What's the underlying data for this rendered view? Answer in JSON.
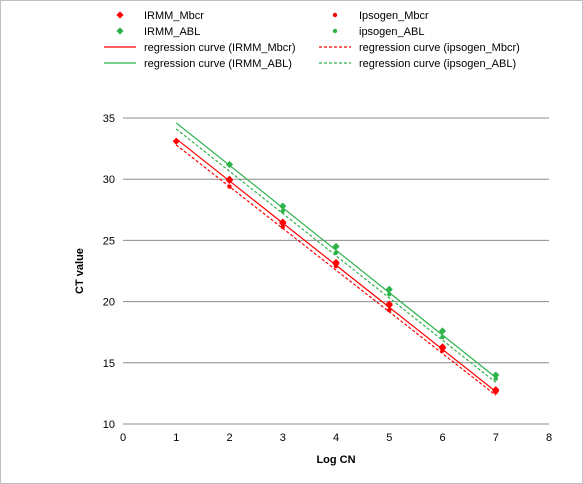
{
  "chart_data": {
    "type": "scatter",
    "xlabel": "Log CN",
    "ylabel": "CT value",
    "xlim": [
      0,
      8
    ],
    "ylim": [
      10,
      35
    ],
    "xticks": [
      0,
      1,
      2,
      3,
      4,
      5,
      6,
      7,
      8
    ],
    "yticks": [
      10,
      15,
      20,
      25,
      30,
      35
    ],
    "grid": "horizontal",
    "legend_position": "top",
    "series": [
      {
        "name": "IRMM_Mbcr",
        "marker": "diamond",
        "color": "#ff0000",
        "points": [
          [
            1,
            33.1
          ],
          [
            2,
            30.0
          ],
          [
            2,
            29.9
          ],
          [
            3,
            26.5
          ],
          [
            3,
            26.4
          ],
          [
            4,
            23.2
          ],
          [
            4,
            23.1
          ],
          [
            5,
            19.8
          ],
          [
            5,
            19.7
          ],
          [
            6,
            16.3
          ],
          [
            6,
            16.2
          ],
          [
            7,
            12.8
          ],
          [
            7,
            12.7
          ]
        ]
      },
      {
        "name": "Ipsogen_Mbcr",
        "marker": "circle",
        "color": "#ff0000",
        "points": [
          [
            2,
            29.4
          ],
          [
            3,
            26.1
          ],
          [
            4,
            22.9
          ],
          [
            5,
            19.3
          ],
          [
            6,
            16.0
          ],
          [
            7,
            12.6
          ]
        ]
      },
      {
        "name": "IRMM_ABL",
        "marker": "diamond",
        "color": "#2db34a",
        "points": [
          [
            2,
            31.2
          ],
          [
            3,
            27.8
          ],
          [
            4,
            24.5
          ],
          [
            5,
            21.0
          ],
          [
            6,
            17.6
          ],
          [
            7,
            14.0
          ]
        ]
      },
      {
        "name": "ipsogen_ABL",
        "marker": "circle",
        "color": "#2db34a",
        "points": [
          [
            3,
            27.4
          ],
          [
            4,
            24.0
          ],
          [
            5,
            20.6
          ],
          [
            6,
            17.1
          ],
          [
            7,
            13.7
          ]
        ]
      }
    ],
    "regression": [
      {
        "name": "regression curve (IRMM_Mbcr)",
        "color": "#ff0000",
        "dash": "solid",
        "x": [
          1,
          7
        ],
        "y": [
          33.3,
          12.65
        ]
      },
      {
        "name": "regression curve (ipsogen_Mbcr)",
        "color": "#ff0000",
        "dash": "dashed",
        "x": [
          1,
          7
        ],
        "y": [
          32.8,
          12.35
        ]
      },
      {
        "name": "regression curve (IRMM_ABL)",
        "color": "#2db34a",
        "dash": "solid",
        "x": [
          1,
          7
        ],
        "y": [
          34.6,
          13.8
        ]
      },
      {
        "name": "regression curve (ipsogen_ABL)",
        "color": "#2db34a",
        "dash": "dashed",
        "x": [
          1,
          7
        ],
        "y": [
          34.1,
          13.4
        ]
      }
    ],
    "legend": [
      {
        "label": "IRMM_Mbcr",
        "kind": "diamond",
        "color": "#ff0000"
      },
      {
        "label": "Ipsogen_Mbcr",
        "kind": "circle",
        "color": "#ff0000"
      },
      {
        "label": "IRMM_ABL",
        "kind": "diamond",
        "color": "#2db34a"
      },
      {
        "label": "ipsogen_ABL",
        "kind": "circle",
        "color": "#2db34a"
      },
      {
        "label": "regression curve (IRMM_Mbcr)",
        "kind": "line-solid",
        "color": "#ff0000"
      },
      {
        "label": "regression curve (ipsogen_Mbcr)",
        "kind": "line-dashed",
        "color": "#ff0000"
      },
      {
        "label": "regression curve (IRMM_ABL)",
        "kind": "line-solid",
        "color": "#2db34a"
      },
      {
        "label": "regression curve (ipsogen_ABL)",
        "kind": "line-dashed",
        "color": "#2db34a"
      }
    ]
  }
}
